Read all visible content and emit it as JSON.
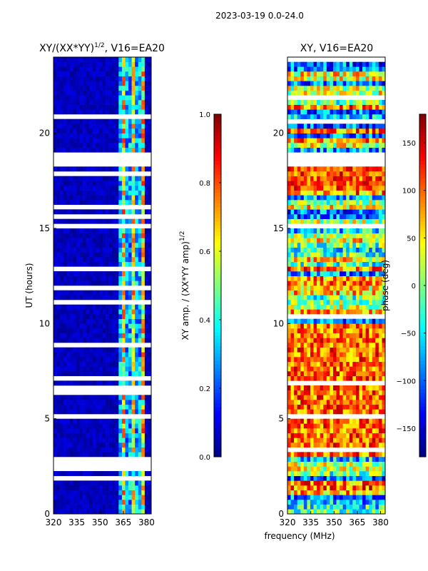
{
  "figure": {
    "suptitle": "2023-03-19 0.0-24.0",
    "shared_xlabel": "frequency (MHz)"
  },
  "chart_data": [
    {
      "type": "heatmap",
      "id": "amplitude",
      "title_main": "XY/(XX*YY)",
      "title_exp": "1/2",
      "title_tail": ", V16=EA20",
      "ylabel": "UT (hours)",
      "xlim": [
        320,
        383
      ],
      "ylim": [
        0,
        24
      ],
      "xticks": [
        320,
        335,
        350,
        365,
        380
      ],
      "yticks": [
        0,
        5,
        10,
        15,
        20
      ],
      "colorbar": {
        "label_main": "XY amp. / (XX*YY amp)",
        "label_exp": "1/2",
        "min": 0.0,
        "max": 1.0,
        "ticks": [
          "0.0",
          "0.2",
          "0.4",
          "0.6",
          "0.8",
          "1.0"
        ],
        "tick_values": [
          0.0,
          0.2,
          0.4,
          0.6,
          0.8,
          1.0
        ]
      },
      "flagged_time_ranges_hours": [
        [
          18.3,
          18.95
        ],
        [
          15.05,
          15.2
        ],
        [
          5.1,
          5.25
        ],
        [
          2.7,
          2.85
        ]
      ],
      "bright_frequency_range_mhz": [
        361,
        378
      ]
    },
    {
      "type": "heatmap",
      "id": "phase",
      "title": "XY, V16=EA20",
      "xlim": [
        320,
        383
      ],
      "ylim": [
        0,
        24
      ],
      "xticks": [
        320,
        335,
        350,
        365,
        380
      ],
      "yticks": [
        0,
        5,
        10,
        15,
        20
      ],
      "colorbar": {
        "label": "phase (deg)",
        "min": -180,
        "max": 180,
        "ticks": [
          "150",
          "100",
          "50",
          "0",
          "−50",
          "−100",
          "−150"
        ],
        "tick_values": [
          150,
          100,
          50,
          0,
          -50,
          -100,
          -150
        ]
      },
      "flagged_time_ranges_hours": [
        [
          18.3,
          18.95
        ],
        [
          15.05,
          15.2
        ],
        [
          5.1,
          5.25
        ],
        [
          2.7,
          2.85
        ]
      ]
    }
  ]
}
